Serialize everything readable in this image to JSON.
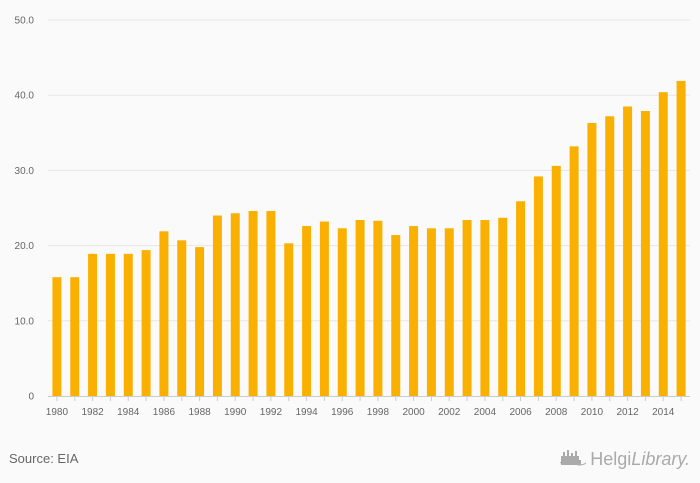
{
  "chart_data": {
    "type": "bar",
    "title": "",
    "xlabel": "",
    "ylabel": "",
    "ylim": [
      0,
      50
    ],
    "yticks": [
      "0",
      "10.0",
      "20.0",
      "30.0",
      "40.0",
      "50.0"
    ],
    "grid": true,
    "bar_color": "#f9b000",
    "categories": [
      "1980",
      "1981",
      "1982",
      "1983",
      "1984",
      "1985",
      "1986",
      "1987",
      "1988",
      "1989",
      "1990",
      "1991",
      "1992",
      "1993",
      "1994",
      "1995",
      "1996",
      "1997",
      "1998",
      "1999",
      "2000",
      "2001",
      "2002",
      "2003",
      "2004",
      "2005",
      "2006",
      "2007",
      "2008",
      "2009",
      "2010",
      "2011",
      "2012",
      "2013",
      "2014",
      "2015"
    ],
    "xtick_labels": [
      "1980",
      "1982",
      "1984",
      "1986",
      "1988",
      "1990",
      "1992",
      "1994",
      "1996",
      "1998",
      "2000",
      "2002",
      "2004",
      "2006",
      "2008",
      "2010",
      "2012",
      "2014"
    ],
    "values": [
      15.8,
      15.8,
      18.9,
      18.9,
      18.9,
      19.4,
      21.9,
      20.7,
      19.8,
      24.0,
      24.3,
      24.6,
      24.6,
      20.3,
      22.6,
      23.2,
      22.3,
      23.4,
      23.3,
      21.4,
      22.6,
      22.3,
      22.3,
      23.4,
      23.4,
      23.7,
      25.9,
      29.2,
      30.6,
      33.2,
      36.3,
      37.2,
      38.5,
      37.9,
      40.4,
      41.9
    ]
  },
  "footer": {
    "source": "Source: EIA",
    "logo_brand": "Helgi",
    "logo_suffix": "Library."
  }
}
